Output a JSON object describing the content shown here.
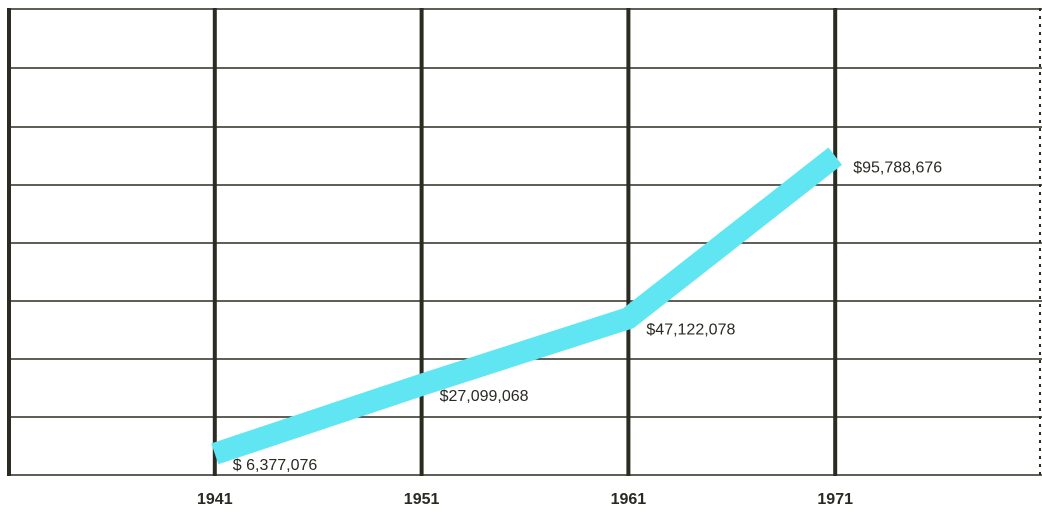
{
  "chart_data": {
    "type": "line",
    "x": [
      1941,
      1951,
      1961,
      1971
    ],
    "series": [
      {
        "color": "#5fe6f2",
        "values": [
          6377076,
          27099068,
          47122078,
          95788676
        ],
        "value_labels": [
          "$ 6,377,076",
          "$27,099,068",
          "$47,122,078",
          "$95,788,676"
        ]
      }
    ],
    "xlim": [
      1931,
      1981
    ],
    "xticks": [
      1941,
      1951,
      1961,
      1971
    ],
    "ylim": [
      0,
      140000000
    ]
  }
}
